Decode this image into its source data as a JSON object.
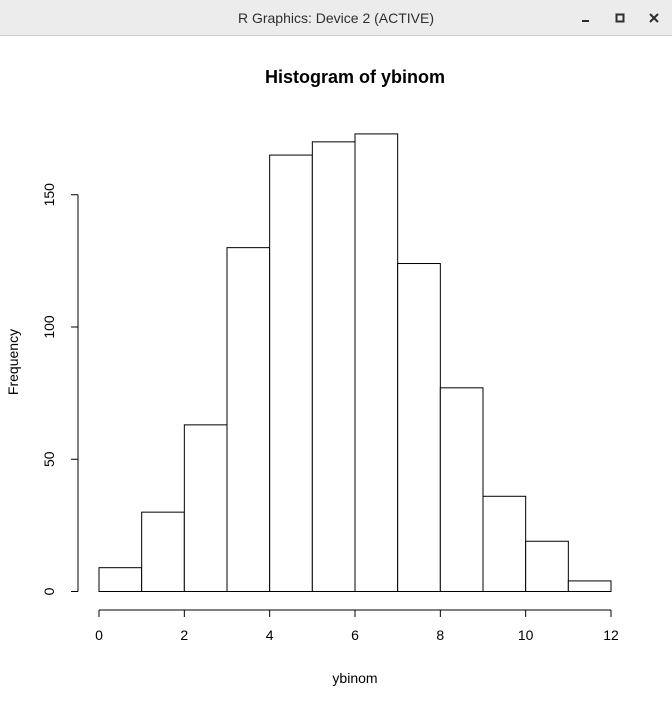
{
  "window": {
    "title": "R Graphics: Device 2 (ACTIVE)",
    "buttons": [
      {
        "name": "minimize",
        "icon": "minimize-icon"
      },
      {
        "name": "maximize",
        "icon": "maximize-icon"
      },
      {
        "name": "close",
        "icon": "close-icon"
      }
    ]
  },
  "chart_data": {
    "type": "bar",
    "title": "Histogram of ybinom",
    "xlabel": "ybinom",
    "ylabel": "Frequency",
    "bins": [
      {
        "from": 0,
        "to": 1,
        "count": 9
      },
      {
        "from": 1,
        "to": 2,
        "count": 30
      },
      {
        "from": 2,
        "to": 3,
        "count": 63
      },
      {
        "from": 3,
        "to": 4,
        "count": 130
      },
      {
        "from": 4,
        "to": 5,
        "count": 165
      },
      {
        "from": 5,
        "to": 6,
        "count": 170
      },
      {
        "from": 6,
        "to": 7,
        "count": 173
      },
      {
        "from": 7,
        "to": 8,
        "count": 124
      },
      {
        "from": 8,
        "to": 9,
        "count": 77
      },
      {
        "from": 9,
        "to": 10,
        "count": 36
      },
      {
        "from": 10,
        "to": 11,
        "count": 19
      },
      {
        "from": 11,
        "to": 12,
        "count": 4
      }
    ],
    "xlim": [
      0,
      12
    ],
    "x_ticks": [
      "0",
      "2",
      "4",
      "6",
      "8",
      "10",
      "12"
    ],
    "y_ticks": [
      "0",
      "50",
      "100",
      "150"
    ],
    "grid": false,
    "legend": "none",
    "bar_fill": "#ffffff",
    "bar_stroke": "#000000"
  }
}
